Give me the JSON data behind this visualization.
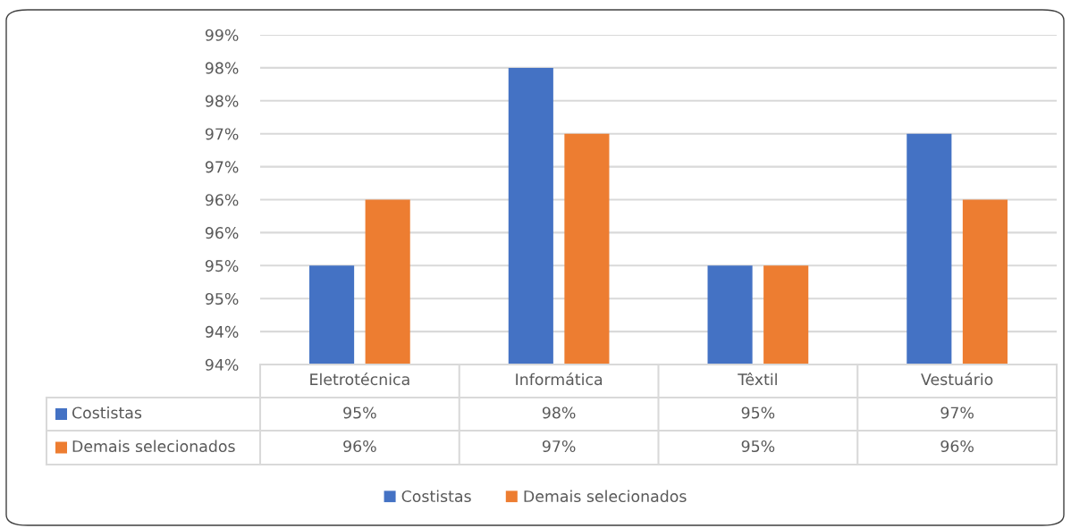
{
  "chart_data": {
    "type": "bar",
    "categories": [
      "Eletrotécnica",
      "Informática",
      "Têxtil",
      "Vestuário"
    ],
    "series": [
      {
        "name": "Costistas",
        "color": "#4472c4",
        "values": [
          95,
          98,
          95,
          97
        ],
        "value_labels": [
          "95%",
          "98%",
          "95%",
          "97%"
        ]
      },
      {
        "name": "Demais selecionados",
        "color": "#ed7d31",
        "values": [
          96,
          97,
          95,
          96
        ],
        "value_labels": [
          "96%",
          "97%",
          "95%",
          "96%"
        ]
      }
    ],
    "ylim": [
      93.5,
      98.5
    ],
    "yticks": [
      {
        "value": 93.5,
        "label": "94%"
      },
      {
        "value": 94.0,
        "label": "94%"
      },
      {
        "value": 94.5,
        "label": "95%"
      },
      {
        "value": 95.0,
        "label": "95%"
      },
      {
        "value": 95.5,
        "label": "96%"
      },
      {
        "value": 96.0,
        "label": "96%"
      },
      {
        "value": 96.5,
        "label": "97%"
      },
      {
        "value": 97.0,
        "label": "97%"
      },
      {
        "value": 97.5,
        "label": "98%"
      },
      {
        "value": 98.0,
        "label": "98%"
      },
      {
        "value": 98.5,
        "label": "99%"
      }
    ],
    "grid": "y",
    "legend": "bottom"
  }
}
